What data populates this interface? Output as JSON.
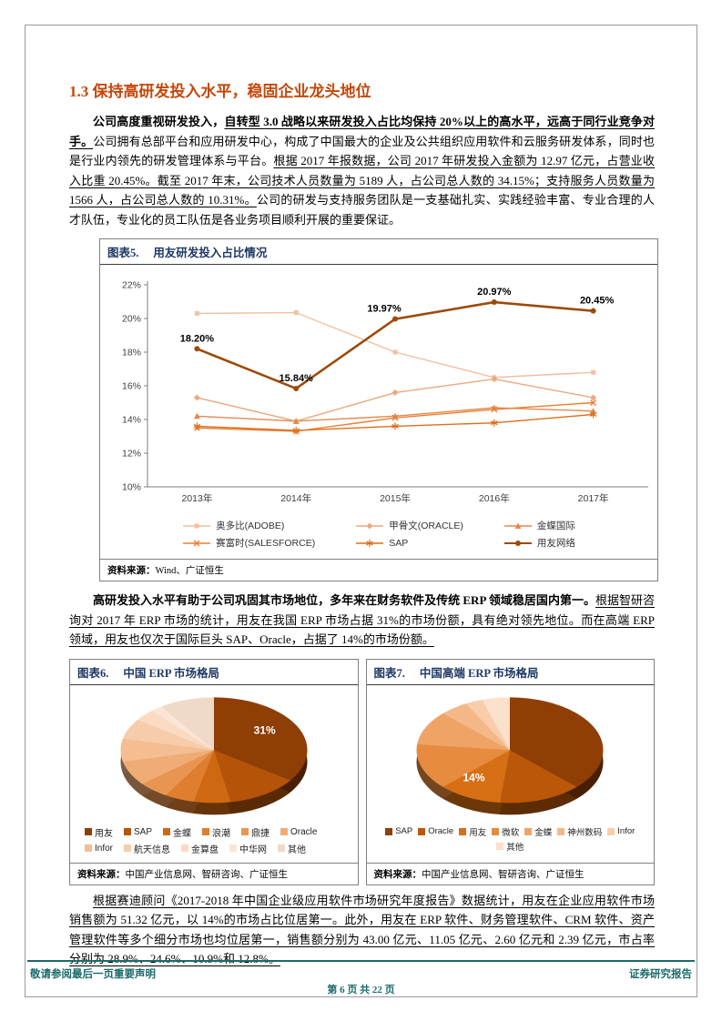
{
  "page": {
    "heading": "1.3 保持高研发投入水平，稳固企业龙头地位",
    "footer": {
      "left": "敬请参阅最后一页重要声明",
      "right": "证券研究报告",
      "page_info": "第 6 页 共 22 页"
    },
    "colors": {
      "heading": "#C4480A",
      "footer_teal": "#1C6B6B",
      "figure_title": "#1F3864",
      "accent_dark_orange": "#9C4A0A"
    }
  },
  "body": {
    "p1": {
      "segments": [
        {
          "text": "公司高度重视研发投入，"
        },
        {
          "text": "自转型 3.0 战略以来研发投入占比均保持 20%以上的高水平，远高于同行业竞争对手。"
        },
        {
          "text": "公司拥有总部平台和应用研发中心，构成了中国最大的企业及公共组织应用软件和云服务研发体系，同时也是行业内领先的研发管理体系与平台。"
        },
        {
          "text": "根据 2017 年报数据，公司 2017 年研发投入金额为 12.97 亿元，占营业收入比重 20.45%。截至 2017 年末，公司技术人员数量为 5189 人，占公司总人数的 34.15%；支持服务人员数量为 1566 人，占公司总人数的 10.31%。"
        },
        {
          "text": "公司的研发与支持服务团队是一支基础扎实、实践经验丰富、专业合理的人才队伍，专业化的员工队伍是各业务项目顺利开展的重要保证。"
        }
      ]
    },
    "p2": {
      "segments": [
        {
          "text": "高研发投入水平有助于公司巩固其市场地位，多年来在财务软件及传统 ERP 领域稳居国内第一。"
        },
        {
          "text": "根据智研咨询对 2017 年 ERP 市场的统计，用友在我国 ERP 市场占据 31%的市场份额，具有绝对领先地位。而在高端 ERP 领域，用友也仅次于国际巨头 SAP、Oracle，占据了 14%的市场份额。"
        }
      ]
    },
    "p3": {
      "segments": [
        {
          "text": "根据赛迪顾问《2017-2018 年中国企业级应用软件市场研究年度报告》数据统计，用友在企业应用软件市场销售额为 51.32 亿元，以 14%的市场占比位居第一。此外，用友在 ERP 软件、财务管理软件、CRM 软件、资产管理软件等多个细分市场也均位居第一，销售额分别为 43.00 亿元、11.05 亿元、2.60 亿元和 2.39 亿元，市占率分别为 28.9%、24.6%、10.9%和 12.8%。"
        }
      ]
    }
  },
  "figures": {
    "fig5": {
      "title": "图表5.",
      "subtitle": "用友研发投入占比情况",
      "source_label": "资料来源：",
      "source_text": "Wind、广证恒生"
    },
    "fig6": {
      "title": "图表6.",
      "subtitle": "中国 ERP 市场格局",
      "source_label": "资料来源：",
      "source_text": "中国产业信息网、智研咨询、广证恒生"
    },
    "fig7": {
      "title": "图表7.",
      "subtitle": "中国高端 ERP 市场格局",
      "source_label": "资料来源：",
      "source_text": "中国产业信息网、智研咨询、广证恒生"
    }
  },
  "chart_data": [
    {
      "type": "line",
      "title": "用友研发投入占比情况",
      "categories": [
        "2013年",
        "2014年",
        "2015年",
        "2016年",
        "2017年"
      ],
      "ylim": [
        10,
        22
      ],
      "ytick_step": 2,
      "yticks": [
        "10%",
        "12%",
        "14%",
        "16%",
        "18%",
        "20%",
        "22%"
      ],
      "grid": false,
      "legend_position": "bottom",
      "series": [
        {
          "name": "奥多比(ADOBE)",
          "color": "#F2BFA2",
          "marker": "square",
          "values": [
            20.3,
            20.35,
            18.0,
            16.5,
            16.8
          ]
        },
        {
          "name": "甲骨文(ORACLE)",
          "color": "#EBA87E",
          "marker": "diamond",
          "values": [
            15.3,
            13.9,
            15.6,
            16.4,
            15.3
          ]
        },
        {
          "name": "金蝶国际",
          "color": "#E08A4E",
          "marker": "triangle",
          "values": [
            14.2,
            13.9,
            14.2,
            14.7,
            14.5
          ]
        },
        {
          "name": "赛富时(SALESFORCE)",
          "color": "#ED7D31",
          "marker": "x",
          "values": [
            13.5,
            13.3,
            14.1,
            14.6,
            15.0
          ]
        },
        {
          "name": "SAP",
          "color": "#DE6E1A",
          "marker": "asterisk",
          "values": [
            13.6,
            13.35,
            13.6,
            13.8,
            14.3
          ]
        },
        {
          "name": "用友网络",
          "color": "#9C4A0A",
          "marker": "circle",
          "width": 2.6,
          "values": [
            18.2,
            15.84,
            19.97,
            20.97,
            20.45
          ],
          "labels": [
            "18.20%",
            "15.84%",
            "19.97%",
            "20.97%",
            "20.45%"
          ],
          "label_offsets": [
            [
              0,
              -8
            ],
            [
              0,
              -8
            ],
            [
              -12,
              -8
            ],
            [
              0,
              -8
            ],
            [
              4,
              -8
            ]
          ]
        }
      ]
    },
    {
      "type": "pie",
      "title": "中国 ERP 市场格局",
      "slices": [
        {
          "name": "用友",
          "value": 31,
          "color": "#8F3E06",
          "label": "31%"
        },
        {
          "name": "SAP",
          "value": 14,
          "color": "#B55309"
        },
        {
          "name": "金蝶",
          "value": 11,
          "color": "#CE6812"
        },
        {
          "name": "浪潮",
          "value": 7,
          "color": "#DE7E2E"
        },
        {
          "name": "鼎捷",
          "value": 5,
          "color": "#E89552"
        },
        {
          "name": "Oracle",
          "value": 5,
          "color": "#EFAC75"
        },
        {
          "name": "Infor",
          "value": 4,
          "color": "#F4BD92"
        },
        {
          "name": "航天信息",
          "value": 4,
          "color": "#F7CCAA"
        },
        {
          "name": "金算盘",
          "value": 3,
          "color": "#FADAC1"
        },
        {
          "name": "中华网",
          "value": 2,
          "color": "#FCE5D4"
        },
        {
          "name": "其他",
          "value": 14,
          "color": "#F1D9C8"
        }
      ]
    },
    {
      "type": "pie",
      "title": "中国高端 ERP 市场格局",
      "slices": [
        {
          "name": "SAP",
          "value": 33,
          "color": "#8F3E06"
        },
        {
          "name": "Oracle",
          "value": 20,
          "color": "#BB5708"
        },
        {
          "name": "用友",
          "value": 14,
          "color": "#D76F15",
          "label": "14%"
        },
        {
          "name": "微软",
          "value": 9,
          "color": "#E68B3F"
        },
        {
          "name": "金蝶",
          "value": 7,
          "color": "#EFA466"
        },
        {
          "name": "神州数码",
          "value": 5,
          "color": "#F4B888"
        },
        {
          "name": "Infor",
          "value": 4,
          "color": "#F8CDA9"
        },
        {
          "name": "其他",
          "value": 8,
          "color": "#FBE0CB"
        }
      ]
    }
  ]
}
